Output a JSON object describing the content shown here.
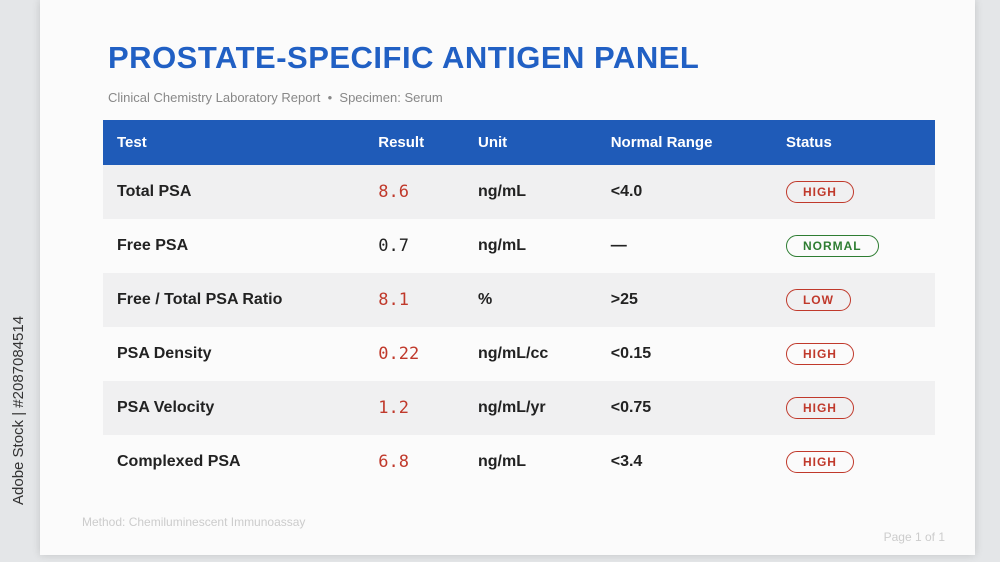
{
  "header": {
    "title": "PROSTATE-SPECIFIC ANTIGEN PANEL",
    "subtitle": "Clinical Chemistry Laboratory Report  •  Specimen: Serum"
  },
  "table": {
    "columns": [
      "Test",
      "Result",
      "Unit",
      "Normal Range",
      "Status"
    ],
    "rows": [
      [
        "Total PSA",
        "8.6",
        "ng/mL",
        "<4.0",
        "HIGH"
      ],
      [
        "Free PSA",
        "0.7",
        "ng/mL",
        "—",
        "NORMAL"
      ],
      [
        "Free / Total PSA Ratio",
        "8.1",
        "%",
        ">25",
        "LOW"
      ],
      [
        "PSA Density",
        "0.22",
        "ng/mL/cc",
        "<0.15",
        "HIGH"
      ],
      [
        "PSA Velocity",
        "1.2",
        "ng/mL/yr",
        "<0.75",
        "HIGH"
      ],
      [
        "Complexed PSA",
        "6.8",
        "ng/mL",
        "<3.4",
        "HIGH"
      ]
    ],
    "result_colors": [
      "#c0392b",
      "#222222",
      "#c0392b",
      "#c0392b",
      "#c0392b",
      "#c0392b"
    ],
    "status_colors": [
      "#c0392b",
      "#2e7d32",
      "#c0392b",
      "#c0392b",
      "#c0392b",
      "#c0392b"
    ]
  },
  "footer": {
    "method": "Method: Chemiluminescent Immunoassay",
    "page": "Page 1 of 1"
  },
  "watermark": "Adobe Stock | #2087084514"
}
